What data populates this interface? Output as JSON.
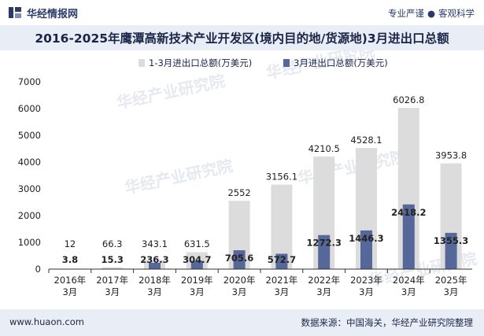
{
  "header": {
    "brand": "华经情报网",
    "slogan_left": "专业严谨",
    "slogan_sep": "●",
    "slogan_right": "客观科学"
  },
  "footer": {
    "website": "www.huaon.com",
    "source": "数据来源：中国海关，华经产业研究院整理"
  },
  "watermark": "华经产业研究院",
  "colors": {
    "series1": "#dcdcdc",
    "series2": "#56679a",
    "title_bg": "#e9edf5",
    "text": "#1a2548"
  },
  "chart_data": {
    "type": "bar",
    "title": "2016-2025年鹰潭高新技术产业开发区(境内目的地/货源地)3月进出口总额",
    "categories": [
      "2016年\n3月",
      "2017年\n3月",
      "2018年\n3月",
      "2019年\n3月",
      "2020年\n3月",
      "2021年\n3月",
      "2022年\n3月",
      "2023年\n3月",
      "2024年\n3月",
      "2025年\n3月"
    ],
    "series": [
      {
        "name": "1-3月进出口总额(万美元)",
        "values": [
          12,
          66.3,
          343.1,
          631.5,
          2552,
          3156.1,
          4210.5,
          4528.1,
          6026.8,
          3953.8
        ],
        "labels": [
          "12",
          "66.3",
          "343.1",
          "631.5",
          "2552",
          "3156.1",
          "4210.5",
          "4528.1",
          "6026.8",
          "3953.8"
        ]
      },
      {
        "name": "3月进出口总额(万美元)",
        "values": [
          3.8,
          15.3,
          236.3,
          304.7,
          705.6,
          572.7,
          1272.3,
          1446.3,
          2418.2,
          1355.3
        ],
        "labels": [
          "3.8",
          "15.3",
          "236.3",
          "304.7",
          "705.6",
          "572.7",
          "1272.3",
          "1446.3",
          "2418.2",
          "1355.3"
        ]
      }
    ],
    "ylim": [
      0,
      7000
    ],
    "yticks": [
      "0",
      "1000",
      "2000",
      "3000",
      "4000",
      "5000",
      "6000",
      "7000"
    ],
    "legend_position": "top-center",
    "grid": false
  }
}
